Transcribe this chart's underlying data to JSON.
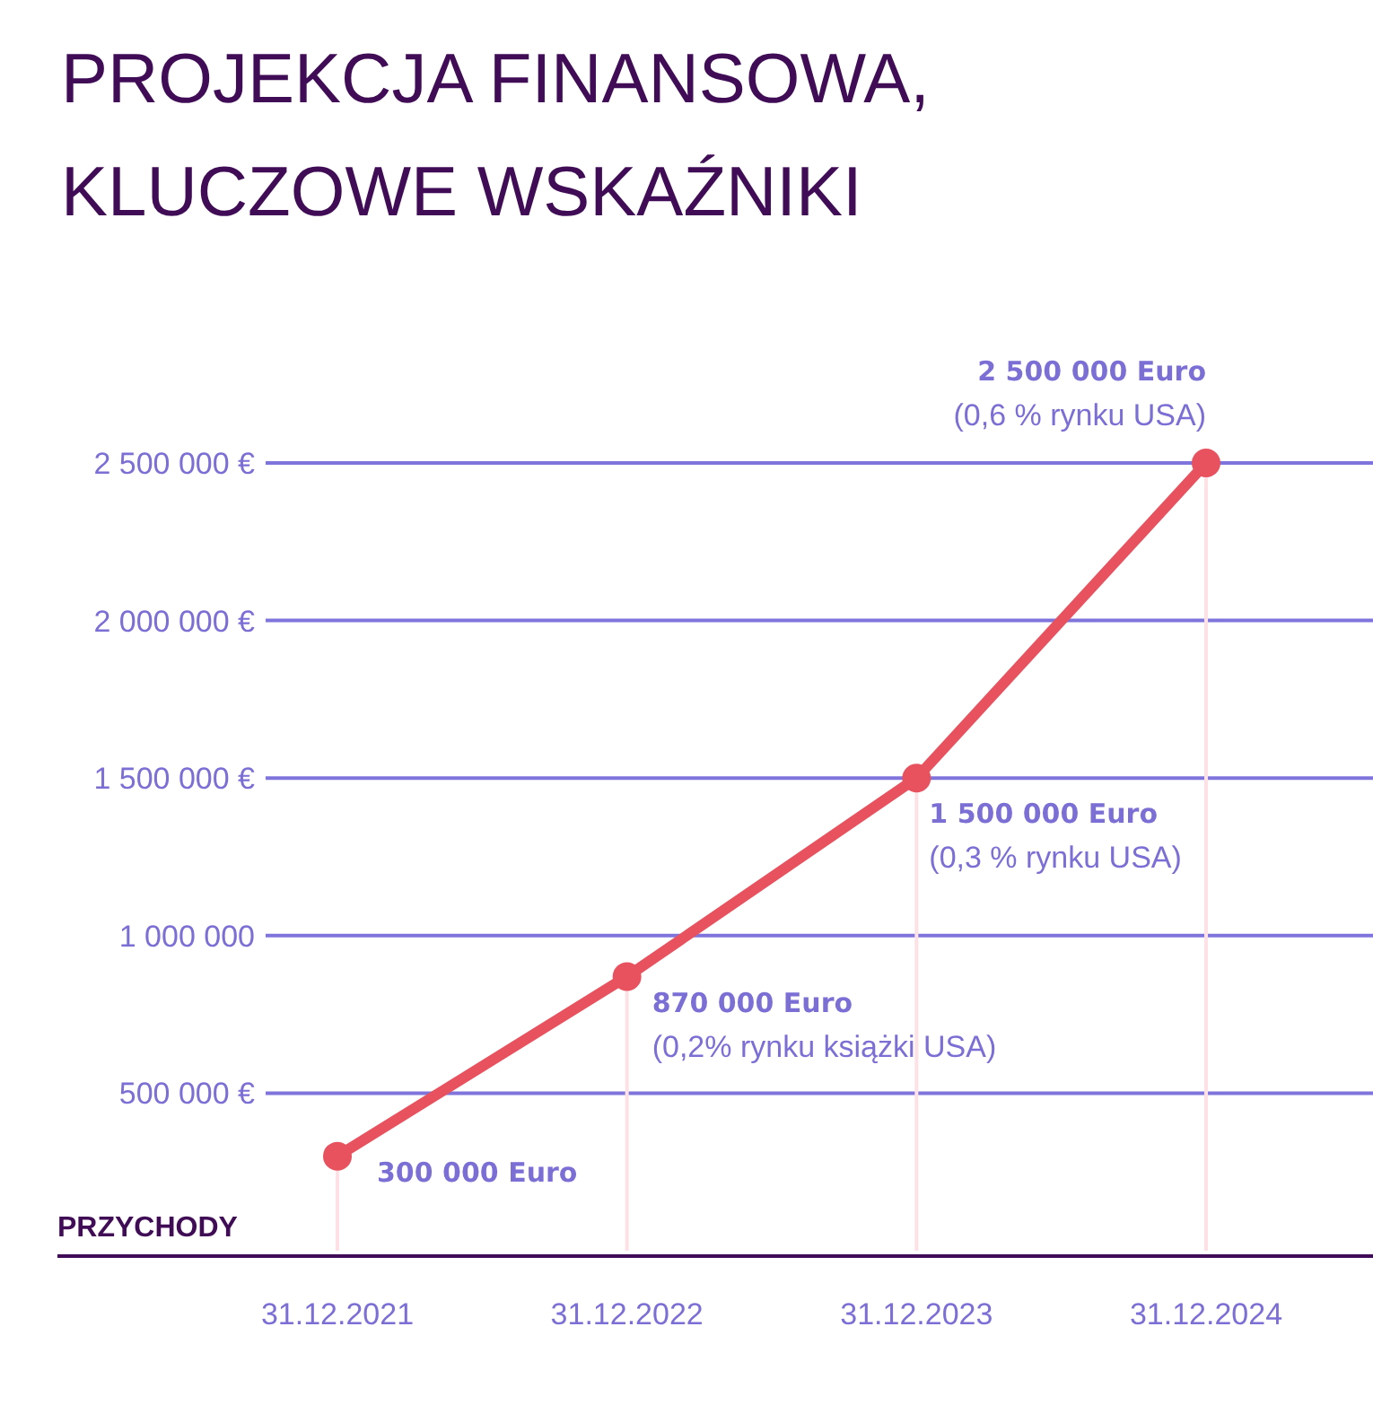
{
  "chart_data": {
    "type": "line",
    "title": "PROJEKCJA FINANSOWA,\nKLUCZOWE WSKAŹNIKI",
    "ylabel": "PRZYCHODY",
    "categories": [
      "31.12.2021",
      "31.12.2022",
      "31.12.2023",
      "31.12.2024"
    ],
    "series": [
      {
        "color": "#e8525f",
        "values": [
          300000,
          870000,
          1500000,
          2500000
        ],
        "value_labels": [
          "300 000 Euro",
          "870 000 Euro",
          "1 500 000 Euro",
          "2 500 000 Euro"
        ]
      }
    ],
    "ylim": [
      0,
      2500000
    ],
    "yticks": [
      {
        "value": 500000,
        "label": "500 000 €"
      },
      {
        "value": 1000000,
        "label": "1 000 000"
      },
      {
        "value": 1500000,
        "label": "1 500 000 €"
      },
      {
        "value": 2000000,
        "label": "2 000 000 €"
      },
      {
        "value": 2500000,
        "label": "2 500 000 €"
      }
    ],
    "grid": "y",
    "marker": "circle",
    "line_style": "solid",
    "ref_lines": [
      {
        "axis": "x",
        "value": "31.12.2021",
        "color": "#fde1e4"
      },
      {
        "axis": "x",
        "value": "31.12.2022",
        "color": "#fde1e4"
      },
      {
        "axis": "x",
        "value": "31.12.2023",
        "color": "#fde1e4"
      },
      {
        "axis": "x",
        "value": "31.12.2024",
        "color": "#fde1e4"
      }
    ],
    "annotations": [
      {
        "text": "(0,2% rynku książki USA)",
        "x": "31.12.2022",
        "y": 870000
      },
      {
        "text": "(0,3 % rynku USA)",
        "x": "31.12.2023",
        "y": 1500000
      },
      {
        "text": "(0,6 % rynku USA)",
        "x": "31.12.2024",
        "y": 2500000
      }
    ]
  }
}
